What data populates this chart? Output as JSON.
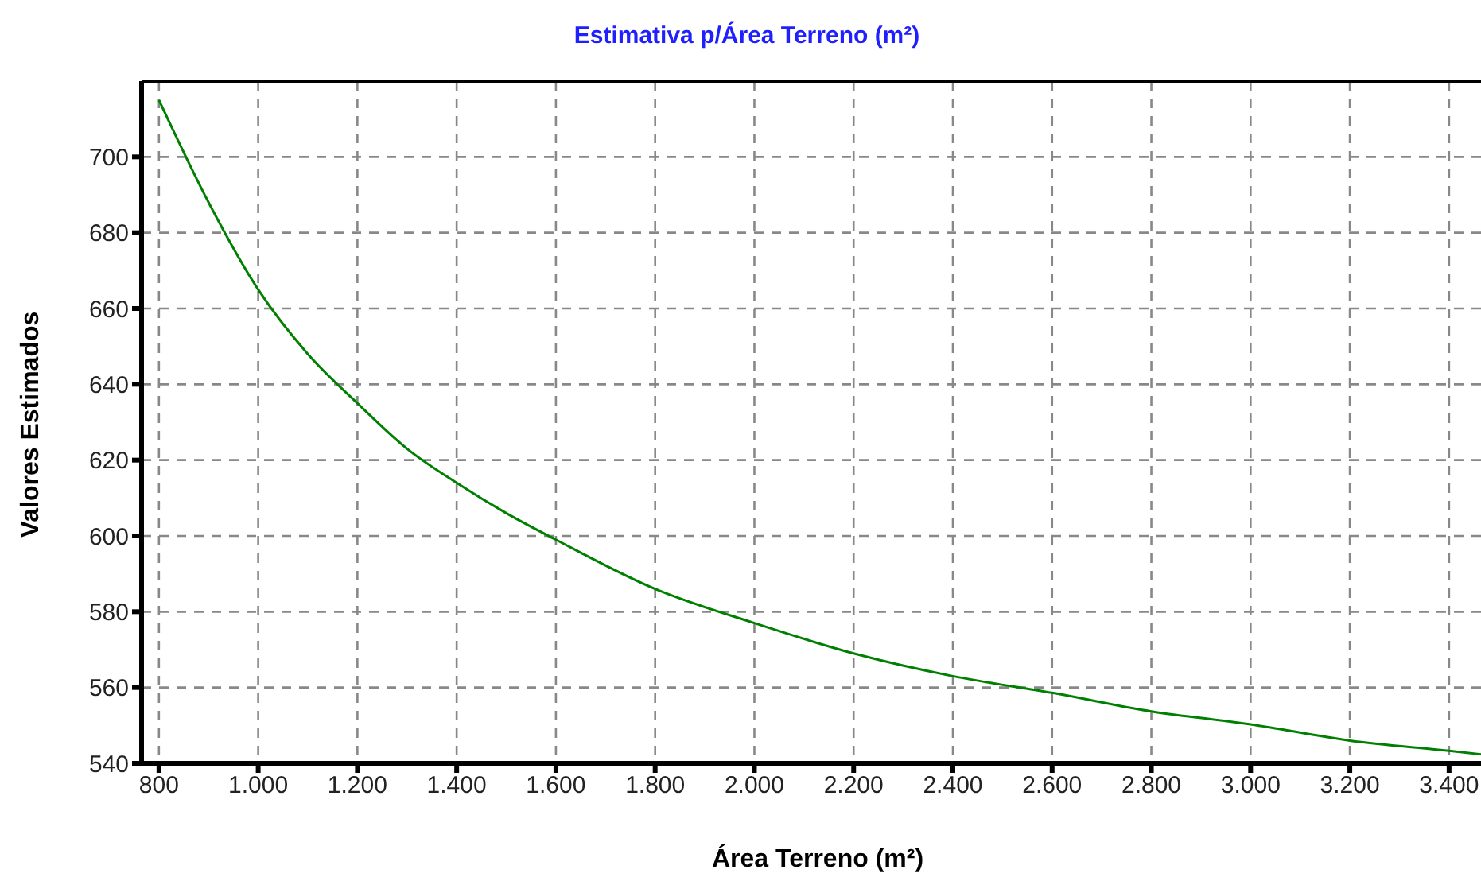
{
  "chart_data": {
    "type": "line",
    "title": "Estimativa p/Área Terreno (m²)",
    "xlabel": "Área Terreno (m²)",
    "ylabel": "Valores Estimados",
    "x": [
      800,
      900,
      1000,
      1100,
      1200,
      1300,
      1400,
      1500,
      1600,
      1800,
      2000,
      2200,
      2400,
      2600,
      2800,
      3000,
      3200,
      3400,
      3490
    ],
    "series": [
      {
        "color": "#008000",
        "values": [
          715,
          688,
          665,
          648,
          635,
          623,
          614,
          606,
          599,
          586,
          577,
          569,
          563,
          558.6,
          553.7,
          550.3,
          546,
          543.3,
          542
        ]
      }
    ],
    "xlim": [
      765,
      3490
    ],
    "ylim": [
      540,
      720
    ],
    "xticks": [
      800,
      {
        "value": 1000,
        "label": "1.000"
      },
      {
        "value": 1200,
        "label": "1.200"
      },
      {
        "value": 1400,
        "label": "1.400"
      },
      {
        "value": 1600,
        "label": "1.600"
      },
      {
        "value": 1800,
        "label": "1.800"
      },
      {
        "value": 2000,
        "label": "2.000"
      },
      {
        "value": 2200,
        "label": "2.200"
      },
      {
        "value": 2400,
        "label": "2.400"
      },
      {
        "value": 2600,
        "label": "2.600"
      },
      {
        "value": 2800,
        "label": "2.800"
      },
      {
        "value": 3000,
        "label": "3.000"
      },
      {
        "value": 3200,
        "label": "3.200"
      },
      {
        "value": 3400,
        "label": "3.400"
      }
    ],
    "yticks": [
      540,
      560,
      580,
      600,
      620,
      640,
      660,
      680,
      700
    ],
    "grid": true,
    "marker": "none",
    "line_style": "solid"
  }
}
